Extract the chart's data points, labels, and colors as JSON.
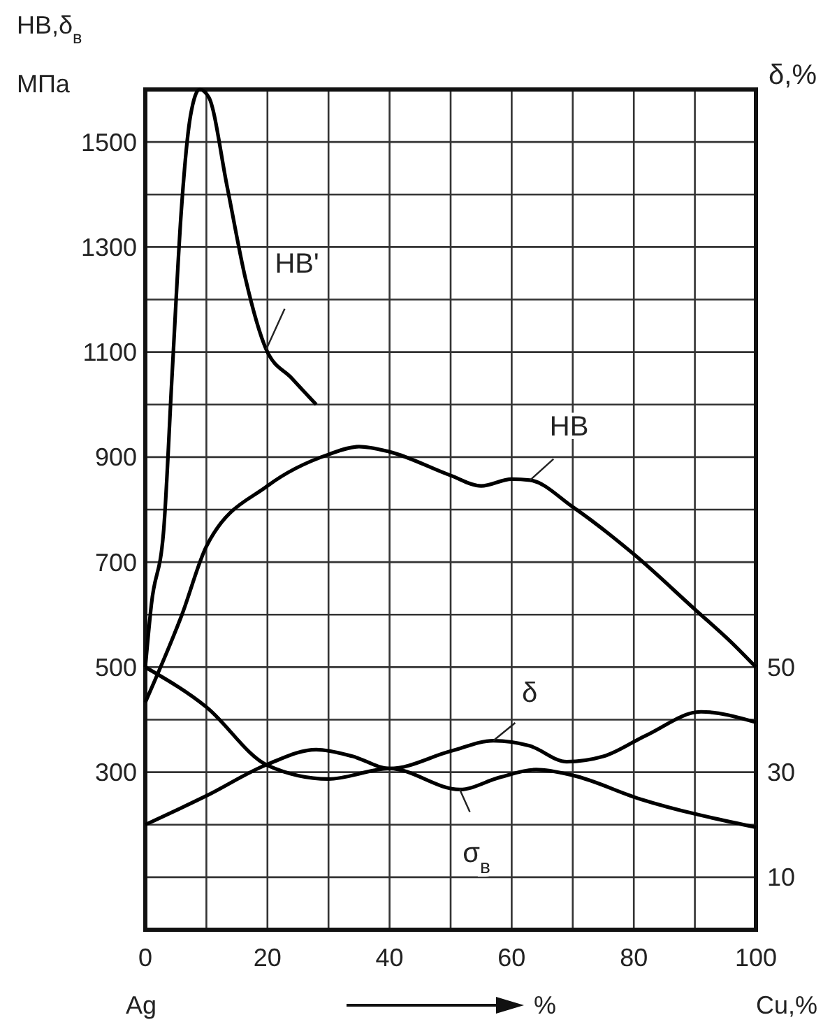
{
  "chart_data": {
    "type": "line",
    "xlabel": "%",
    "ylabel": "HB,δ$_{в}$ МПа",
    "y2label": "δ,%",
    "annotations": [
      "Ag",
      "Cu,%"
    ],
    "xlim": [
      0,
      100
    ],
    "xticks": [
      0,
      {
        "value": 10,
        "label": null
      },
      20,
      {
        "value": 30,
        "label": null
      },
      40,
      {
        "value": 50,
        "label": null
      },
      60,
      {
        "value": 70,
        "label": null
      },
      80,
      {
        "value": 90,
        "label": null
      },
      100
    ],
    "ylim": [
      0,
      1600
    ],
    "yticks": [
      {
        "value": 100,
        "label": null
      },
      {
        "value": 200,
        "label": null
      },
      300,
      {
        "value": 400,
        "label": null
      },
      500,
      {
        "value": 600,
        "label": null
      },
      700,
      {
        "value": 800,
        "label": null
      },
      900,
      {
        "value": 1000,
        "label": null
      },
      1100,
      {
        "value": 1200,
        "label": null
      },
      1300,
      {
        "value": 1400,
        "label": null
      },
      1500
    ],
    "y2lim": [
      0,
      160
    ],
    "y2ticks": [
      10,
      30,
      50
    ],
    "grid": true,
    "line_style": "solid",
    "series": [
      {
        "name": "HB'",
        "color": "#000000",
        "x": [
          0,
          1,
          3,
          4.4,
          5.9,
          7.4,
          8.9,
          10.4,
          13.4,
          16.4,
          19.8,
          24,
          28
        ],
        "values": [
          500,
          620,
          760,
          1060,
          1370,
          1550,
          1600,
          1585,
          1415,
          1240,
          1105,
          1050,
          1000
        ]
      },
      {
        "name": "HB",
        "color": "#000000",
        "x": [
          0,
          6,
          10,
          20,
          30,
          35,
          40,
          50,
          55,
          60,
          63,
          70,
          80,
          90,
          96,
          100
        ],
        "values": [
          433,
          600,
          730,
          845,
          905,
          920,
          910,
          865,
          845,
          858,
          856,
          805,
          715,
          610,
          547,
          500
        ]
      },
      {
        "name": "δ",
        "color": "#000000",
        "axis": "y2",
        "x": [
          0,
          10,
          20,
          28,
          34,
          40,
          50,
          57,
          63,
          69,
          75,
          82,
          91,
          100
        ],
        "values": [
          20,
          25.5,
          31.5,
          34.3,
          33,
          30.7,
          34,
          36,
          35,
          32,
          33,
          37,
          41.5,
          39.5
        ]
      },
      {
        "name": "σ$_{в}$",
        "color": "#000000",
        "x": [
          0,
          10,
          20,
          30,
          40,
          51.5,
          58,
          64,
          70,
          81,
          100
        ],
        "values": [
          500,
          424,
          313,
          287,
          307,
          267,
          290,
          305,
          294,
          249,
          195
        ]
      }
    ]
  }
}
